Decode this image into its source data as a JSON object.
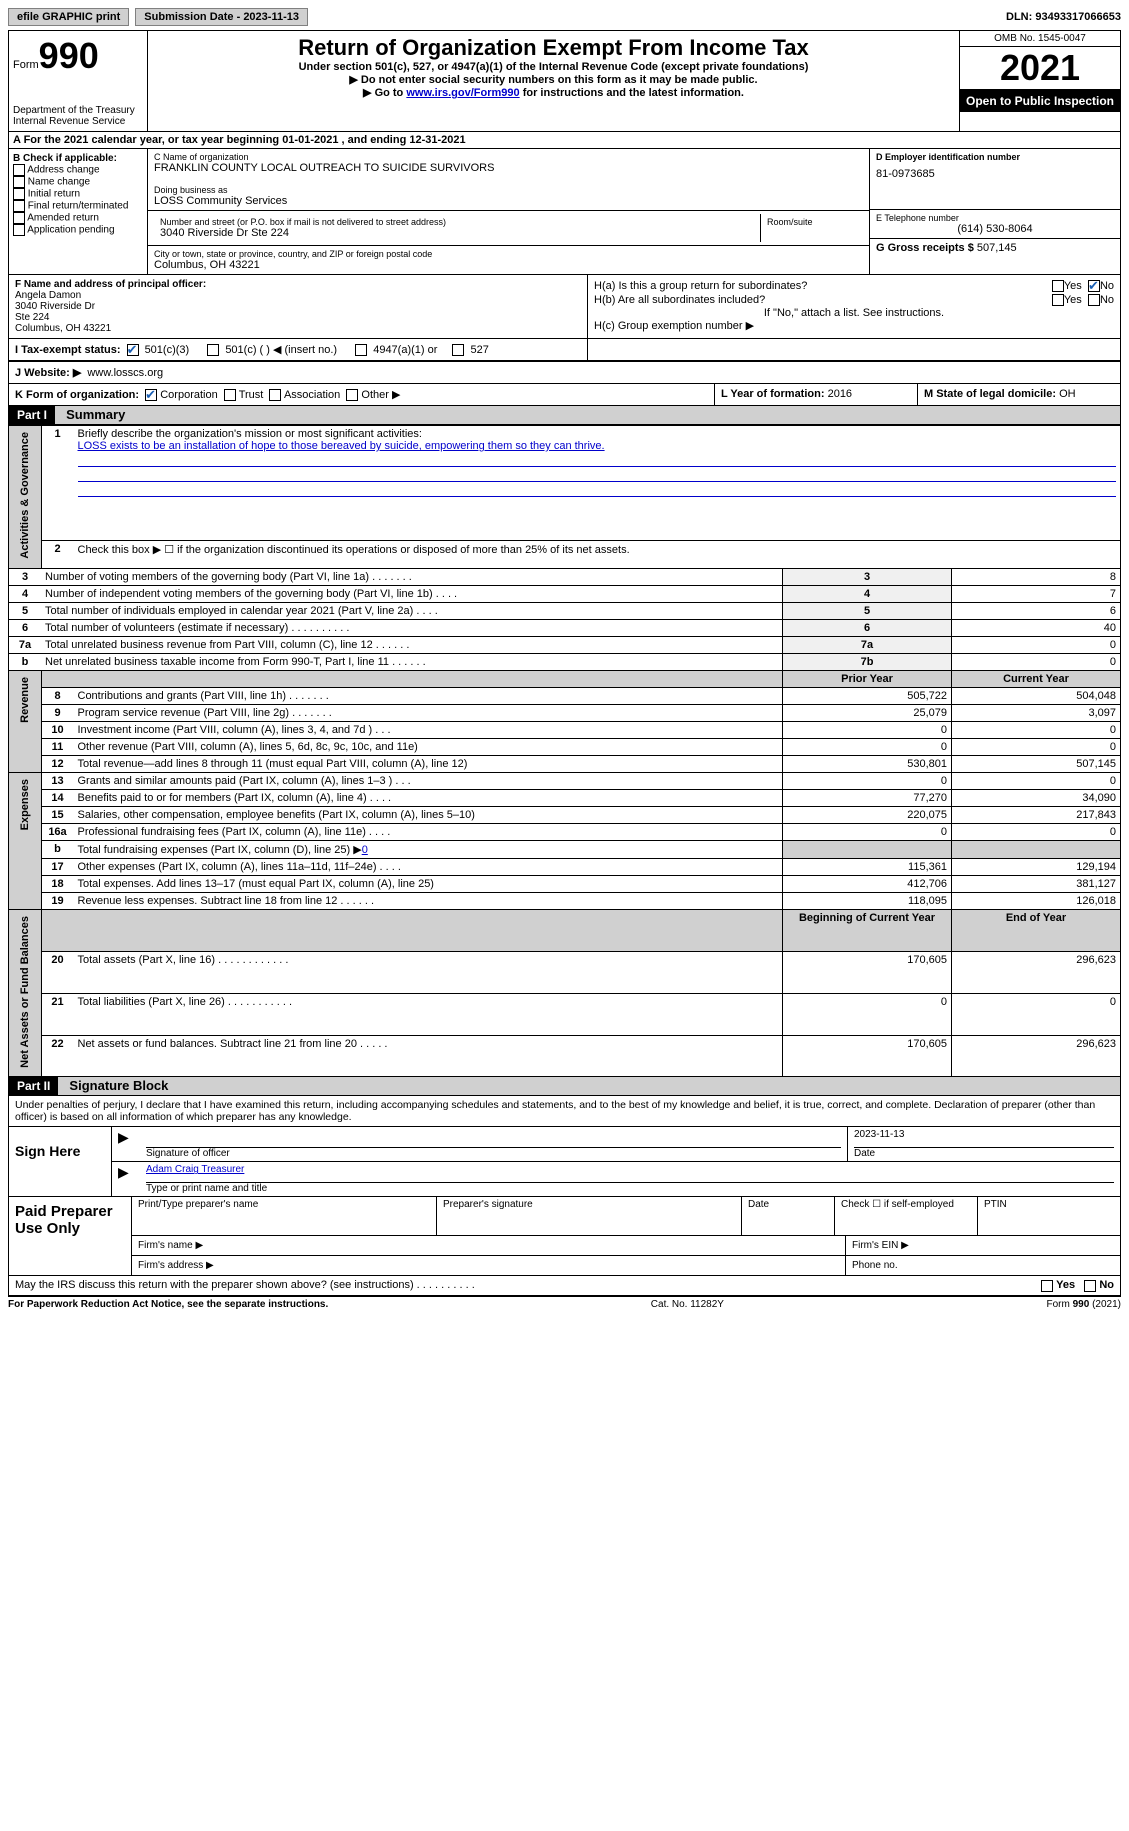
{
  "topbar": {
    "efile": "efile GRAPHIC print",
    "submission": "Submission Date - 2023-11-13",
    "dln": "DLN: 93493317066653"
  },
  "header": {
    "form_word": "Form",
    "form_num": "990",
    "dept": "Department of the Treasury",
    "irs": "Internal Revenue Service",
    "title": "Return of Organization Exempt From Income Tax",
    "subtitle": "Under section 501(c), 527, or 4947(a)(1) of the Internal Revenue Code (except private foundations)",
    "instr1": "▶ Do not enter social security numbers on this form as it may be made public.",
    "instr2_pre": "▶ Go to ",
    "instr2_link": "www.irs.gov/Form990",
    "instr2_post": " for instructions and the latest information.",
    "omb": "OMB No. 1545-0047",
    "year": "2021",
    "otp": "Open to Public Inspection"
  },
  "rowA": "A For the 2021 calendar year, or tax year beginning 01-01-2021    , and ending 12-31-2021",
  "colB": {
    "hdr": "B Check if applicable:",
    "items": [
      "Address change",
      "Name change",
      "Initial return",
      "Final return/terminated",
      "Amended return",
      "Application pending"
    ]
  },
  "colC": {
    "name_lbl": "C Name of organization",
    "name": "FRANKLIN COUNTY LOCAL OUTREACH TO SUICIDE SURVIVORS",
    "dba_lbl": "Doing business as",
    "dba": "LOSS Community Services",
    "addr_lbl": "Number and street (or P.O. box if mail is not delivered to street address)",
    "room_lbl": "Room/suite",
    "addr": "3040 Riverside Dr Ste 224",
    "city_lbl": "City or town, state or province, country, and ZIP or foreign postal code",
    "city": "Columbus, OH  43221"
  },
  "colD": {
    "ein_lbl": "D Employer identification number",
    "ein": "81-0973685",
    "tel_lbl": "E Telephone number",
    "tel": "(614) 530-8064",
    "gross_lbl": "G Gross receipts $",
    "gross": "507,145"
  },
  "colF": {
    "lbl": "F Name and address of principal officer:",
    "name": "Angela Damon",
    "l1": "3040 Riverside Dr",
    "l2": "Ste 224",
    "l3": "Columbus, OH  43221"
  },
  "colH": {
    "a": "H(a)  Is this a group return for subordinates?",
    "b": "H(b)  Are all subordinates included?",
    "note": "If \"No,\" attach a list. See instructions.",
    "c": "H(c)  Group exemption number ▶",
    "yes": "Yes",
    "no": "No"
  },
  "rowI": {
    "lbl": "I   Tax-exempt status:",
    "o1": "501(c)(3)",
    "o2": "501(c) (  ) ◀ (insert no.)",
    "o3": "4947(a)(1) or",
    "o4": "527"
  },
  "rowJ": {
    "lbl": "J   Website: ▶",
    "val": "www.losscs.org"
  },
  "rowK": {
    "lbl": "K Form of organization:",
    "o1": "Corporation",
    "o2": "Trust",
    "o3": "Association",
    "o4": "Other ▶",
    "l_lbl": "L Year of formation:",
    "l_val": "2016",
    "m_lbl": "M State of legal domicile:",
    "m_val": "OH"
  },
  "part1": {
    "label": "Part I",
    "title": "Summary",
    "tabs": {
      "gov": "Activities & Governance",
      "rev": "Revenue",
      "exp": "Expenses",
      "net": "Net Assets or Fund Balances"
    },
    "line1_lbl": "Briefly describe the organization's mission or most significant activities:",
    "line1_val": "LOSS exists to be an installation of hope to those bereaved by suicide, empowering them so they can thrive.",
    "line2": "Check this box ▶ ☐ if the organization discontinued its operations or disposed of more than 25% of its net assets.",
    "rows_gov": [
      {
        "n": "3",
        "d": "Number of voting members of the governing body (Part VI, line 1a)   .    .    .    .    .    .    .",
        "b": "3",
        "v": "8"
      },
      {
        "n": "4",
        "d": "Number of independent voting members of the governing body (Part VI, line 1b)   .    .    .    .",
        "b": "4",
        "v": "7"
      },
      {
        "n": "5",
        "d": "Total number of individuals employed in calendar year 2021 (Part V, line 2a)   .    .    .    .",
        "b": "5",
        "v": "6"
      },
      {
        "n": "6",
        "d": "Total number of volunteers (estimate if necessary)   .    .    .    .    .    .    .    .    .    .",
        "b": "6",
        "v": "40"
      },
      {
        "n": "7a",
        "d": "Total unrelated business revenue from Part VIII, column (C), line 12   .    .    .    .    .    .",
        "b": "7a",
        "v": "0"
      },
      {
        "n": "b",
        "d": "Net unrelated business taxable income from Form 990-T, Part I, line 11   .    .    .    .    .    .",
        "b": "7b",
        "v": "0"
      }
    ],
    "hdr_py": "Prior Year",
    "hdr_cy": "Current Year",
    "rows_rev": [
      {
        "n": "8",
        "d": "Contributions and grants (Part VIII, line 1h)   .    .    .    .    .    .    .",
        "py": "505,722",
        "cy": "504,048"
      },
      {
        "n": "9",
        "d": "Program service revenue (Part VIII, line 2g)   .    .    .    .    .    .    .",
        "py": "25,079",
        "cy": "3,097"
      },
      {
        "n": "10",
        "d": "Investment income (Part VIII, column (A), lines 3, 4, and 7d )   .    .    .",
        "py": "0",
        "cy": "0"
      },
      {
        "n": "11",
        "d": "Other revenue (Part VIII, column (A), lines 5, 6d, 8c, 9c, 10c, and 11e)",
        "py": "0",
        "cy": "0"
      },
      {
        "n": "12",
        "d": "Total revenue—add lines 8 through 11 (must equal Part VIII, column (A), line 12)",
        "py": "530,801",
        "cy": "507,145"
      }
    ],
    "rows_exp": [
      {
        "n": "13",
        "d": "Grants and similar amounts paid (Part IX, column (A), lines 1–3 )   .    .    .",
        "py": "0",
        "cy": "0"
      },
      {
        "n": "14",
        "d": "Benefits paid to or for members (Part IX, column (A), line 4)   .    .    .    .",
        "py": "77,270",
        "cy": "34,090"
      },
      {
        "n": "15",
        "d": "Salaries, other compensation, employee benefits (Part IX, column (A), lines 5–10)",
        "py": "220,075",
        "cy": "217,843"
      },
      {
        "n": "16a",
        "d": "Professional fundraising fees (Part IX, column (A), line 11e)   .    .    .    .",
        "py": "0",
        "cy": "0"
      }
    ],
    "line16b": "Total fundraising expenses (Part IX, column (D), line 25) ▶",
    "line16b_val": "0",
    "rows_exp2": [
      {
        "n": "17",
        "d": "Other expenses (Part IX, column (A), lines 11a–11d, 11f–24e)   .    .    .    .",
        "py": "115,361",
        "cy": "129,194"
      },
      {
        "n": "18",
        "d": "Total expenses. Add lines 13–17 (must equal Part IX, column (A), line 25)",
        "py": "412,706",
        "cy": "381,127"
      },
      {
        "n": "19",
        "d": "Revenue less expenses. Subtract line 18 from line 12   .    .    .    .    .    .",
        "py": "118,095",
        "cy": "126,018"
      }
    ],
    "hdr_boy": "Beginning of Current Year",
    "hdr_eoy": "End of Year",
    "rows_net": [
      {
        "n": "20",
        "d": "Total assets (Part X, line 16)   .    .    .    .    .    .    .    .    .    .    .    .",
        "py": "170,605",
        "cy": "296,623"
      },
      {
        "n": "21",
        "d": "Total liabilities (Part X, line 26)   .    .    .    .    .    .    .    .    .    .    .",
        "py": "0",
        "cy": "0"
      },
      {
        "n": "22",
        "d": "Net assets or fund balances. Subtract line 21 from line 20   .    .    .    .    .",
        "py": "170,605",
        "cy": "296,623"
      }
    ]
  },
  "part2": {
    "label": "Part II",
    "title": "Signature Block",
    "decl": "Under penalties of perjury, I declare that I have examined this return, including accompanying schedules and statements, and to the best of my knowledge and belief, it is true, correct, and complete. Declaration of preparer (other than officer) is based on all information of which preparer has any knowledge.",
    "sign_here": "Sign Here",
    "sig_officer": "Signature of officer",
    "date": "Date",
    "sig_date": "2023-11-13",
    "name_title_lbl": "Type or print name and title",
    "name_title": "Adam Craig  Treasurer",
    "paid": "Paid Preparer Use Only",
    "prep_name": "Print/Type preparer's name",
    "prep_sig": "Preparer's signature",
    "prep_date": "Date",
    "self_emp": "Check ☐ if self-employed",
    "ptin": "PTIN",
    "firm_name": "Firm's name    ▶",
    "firm_ein": "Firm's EIN ▶",
    "firm_addr": "Firm's address ▶",
    "phone": "Phone no."
  },
  "discuss": {
    "q": "May the IRS discuss this return with the preparer shown above? (see instructions)   .    .    .    .    .    .    .    .    .    .",
    "yes": "Yes",
    "no": "No"
  },
  "footer": {
    "l": "For Paperwork Reduction Act Notice, see the separate instructions.",
    "c": "Cat. No. 11282Y",
    "r": "Form 990 (2021)"
  }
}
